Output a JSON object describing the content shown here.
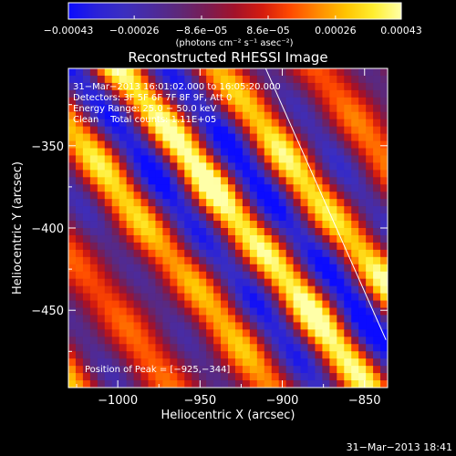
{
  "chart_data": {
    "type": "heatmap",
    "title": "Reconstructed RHESSI Image",
    "xlabel": "Heliocentric X (arcsec)",
    "ylabel": "Heliocentric Y (arcsec)",
    "xlim": [
      -1030,
      -836
    ],
    "ylim": [
      -497,
      -303
    ],
    "x_ticks": [
      -1000,
      -950,
      -900,
      -850
    ],
    "x_tick_labels": [
      "−1000",
      "−950",
      "−900",
      "−850"
    ],
    "y_ticks": [
      -350,
      -400,
      -450
    ],
    "y_tick_labels": [
      "−350",
      "−400",
      "−450"
    ],
    "colorbar": {
      "range": [
        -0.00043,
        0.00043
      ],
      "tick_values": [
        -0.00043,
        -0.00026,
        -8.6e-05,
        8.6e-05,
        0.00026,
        0.00043
      ],
      "tick_labels": [
        "−0.00043",
        "−0.00026",
        "−8.6e−05",
        "8.6e−05",
        "0.00026",
        "0.00043"
      ],
      "units": "(photons cm⁻² s⁻¹ asec⁻²)"
    },
    "info_lines": [
      "31−Mar−2013 16:01:02.000 to 16:05:20.000",
      "Detectors: 3F 5F 6F 7F 8F 9F, Att 0",
      "Energy Range: 25.0 − 50.0 keV",
      "Clean    Total counts: 1.11E+05"
    ],
    "peak_label": "Position of Peak = [−925,−344]",
    "peak_position": [
      -925,
      -344
    ],
    "limb_line": {
      "x": [
        -911,
        -837
      ],
      "y": [
        -301,
        -468
      ]
    },
    "grid": false
  },
  "timestamp": "31−Mar−2013 18:41",
  "colors": {
    "background": "#000000",
    "text": "#ffffff",
    "colormap": [
      "#0b0bff",
      "#2a22d8",
      "#3b2ec0",
      "#4b2b9e",
      "#5e2878",
      "#7a1c52",
      "#a3122a",
      "#d41c0e",
      "#ff4a00",
      "#ff8a00",
      "#ffc400",
      "#ffee30",
      "#ffffa8"
    ]
  }
}
